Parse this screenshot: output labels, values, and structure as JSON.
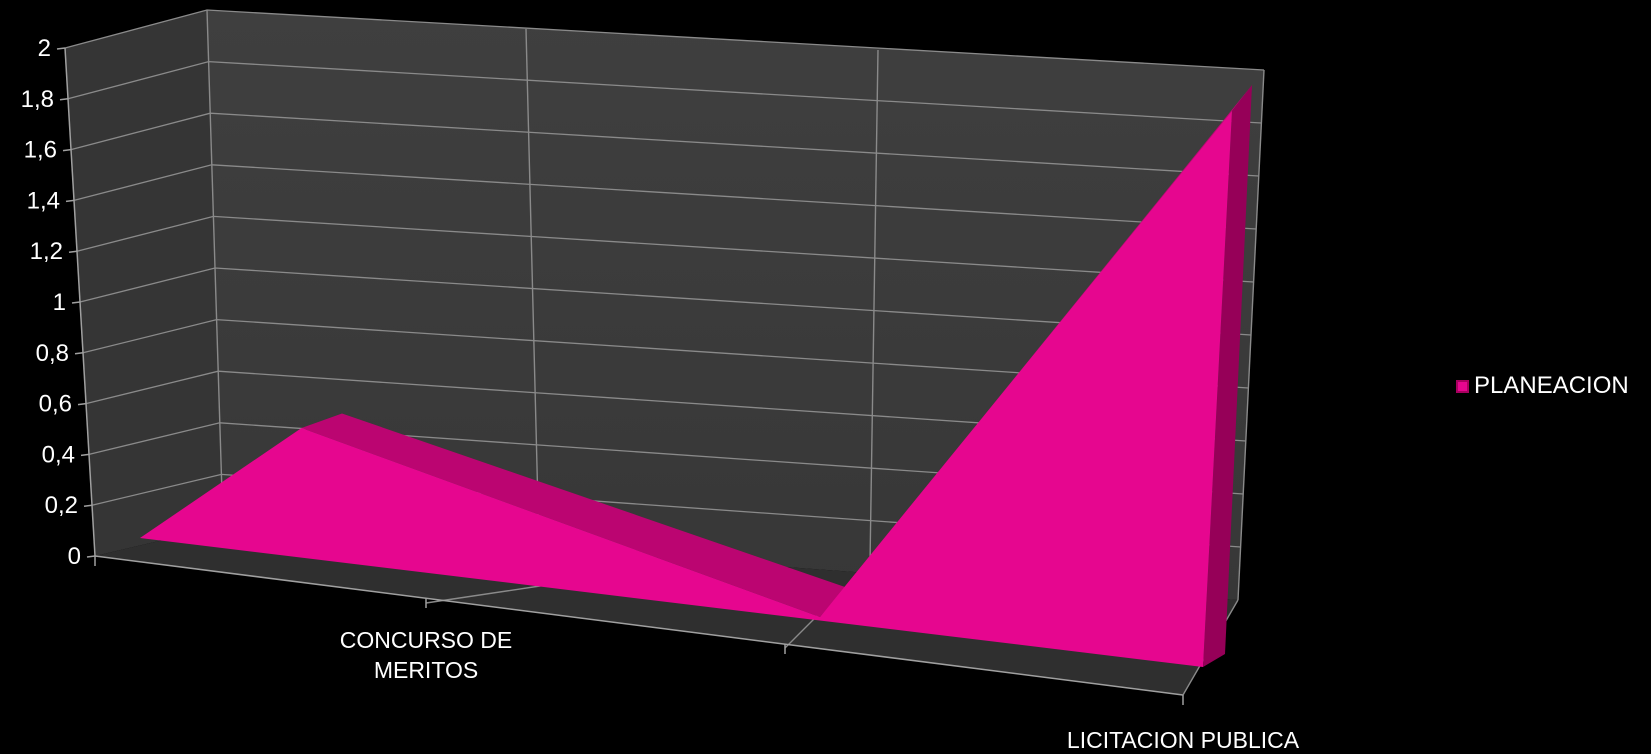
{
  "chart_data": {
    "type": "area",
    "categories": [
      "CONCURSO DE MERITOS",
      "",
      "LICITACION PUBLICA"
    ],
    "series": [
      {
        "name": "PLANEACION",
        "values": [
          1,
          0,
          2
        ],
        "color": "#e6068f"
      }
    ],
    "y_ticks": [
      "0",
      "0,2",
      "0,4",
      "0,6",
      "0,8",
      "1",
      "1,2",
      "1,4",
      "1,6",
      "1,8",
      "2"
    ],
    "ylim": [
      0,
      2
    ],
    "grid": true,
    "legend_position": "right",
    "background": "#000000",
    "wall_color": "#3c3c3c",
    "floor_color": "#323232"
  }
}
